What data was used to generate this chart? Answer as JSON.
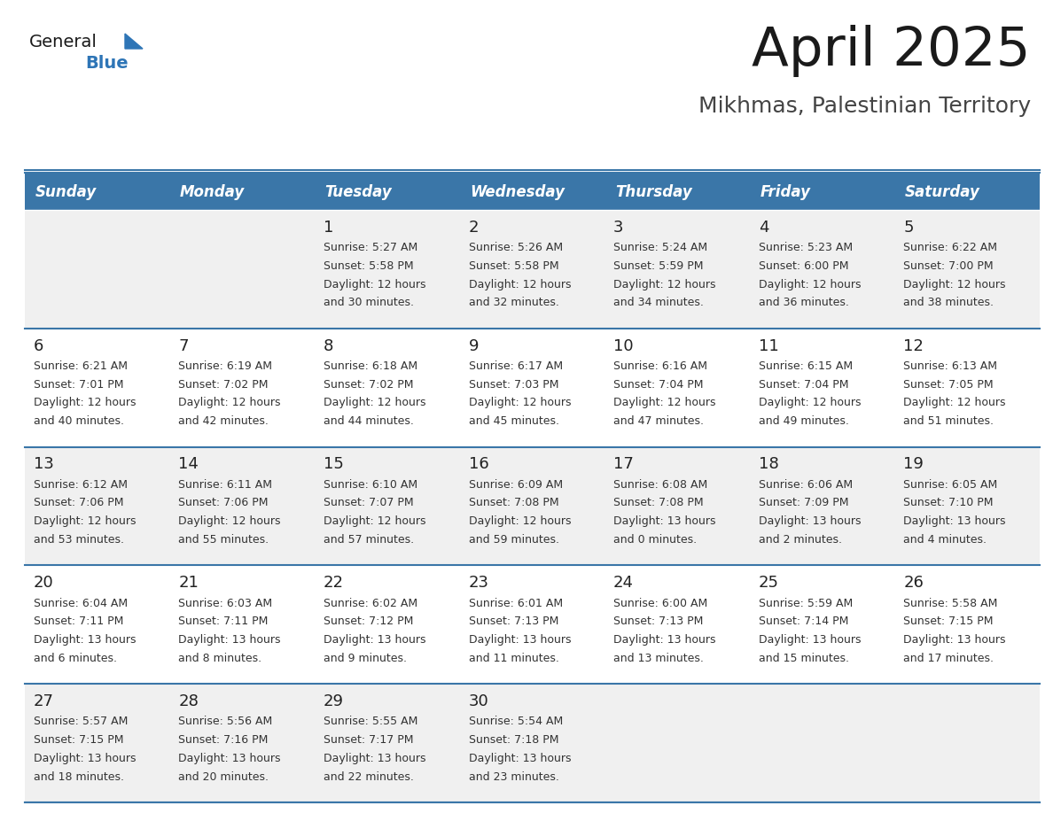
{
  "title": "April 2025",
  "subtitle": "Mikhmas, Palestinian Territory",
  "days_of_week": [
    "Sunday",
    "Monday",
    "Tuesday",
    "Wednesday",
    "Thursday",
    "Friday",
    "Saturday"
  ],
  "header_bg": "#3a76a8",
  "header_text": "#ffffff",
  "cell_bg_odd": "#f0f0f0",
  "cell_bg_even": "#ffffff",
  "day_num_color": "#222222",
  "text_color": "#333333",
  "border_color": "#3a76a8",
  "title_color": "#1a1a1a",
  "subtitle_color": "#444444",
  "logo_general_color": "#1a1a1a",
  "logo_blue_color": "#2e75b6",
  "weeks": [
    [
      {
        "day": null,
        "info": null
      },
      {
        "day": null,
        "info": null
      },
      {
        "day": 1,
        "info": "Sunrise: 5:27 AM\nSunset: 5:58 PM\nDaylight: 12 hours\nand 30 minutes."
      },
      {
        "day": 2,
        "info": "Sunrise: 5:26 AM\nSunset: 5:58 PM\nDaylight: 12 hours\nand 32 minutes."
      },
      {
        "day": 3,
        "info": "Sunrise: 5:24 AM\nSunset: 5:59 PM\nDaylight: 12 hours\nand 34 minutes."
      },
      {
        "day": 4,
        "info": "Sunrise: 5:23 AM\nSunset: 6:00 PM\nDaylight: 12 hours\nand 36 minutes."
      },
      {
        "day": 5,
        "info": "Sunrise: 6:22 AM\nSunset: 7:00 PM\nDaylight: 12 hours\nand 38 minutes."
      }
    ],
    [
      {
        "day": 6,
        "info": "Sunrise: 6:21 AM\nSunset: 7:01 PM\nDaylight: 12 hours\nand 40 minutes."
      },
      {
        "day": 7,
        "info": "Sunrise: 6:19 AM\nSunset: 7:02 PM\nDaylight: 12 hours\nand 42 minutes."
      },
      {
        "day": 8,
        "info": "Sunrise: 6:18 AM\nSunset: 7:02 PM\nDaylight: 12 hours\nand 44 minutes."
      },
      {
        "day": 9,
        "info": "Sunrise: 6:17 AM\nSunset: 7:03 PM\nDaylight: 12 hours\nand 45 minutes."
      },
      {
        "day": 10,
        "info": "Sunrise: 6:16 AM\nSunset: 7:04 PM\nDaylight: 12 hours\nand 47 minutes."
      },
      {
        "day": 11,
        "info": "Sunrise: 6:15 AM\nSunset: 7:04 PM\nDaylight: 12 hours\nand 49 minutes."
      },
      {
        "day": 12,
        "info": "Sunrise: 6:13 AM\nSunset: 7:05 PM\nDaylight: 12 hours\nand 51 minutes."
      }
    ],
    [
      {
        "day": 13,
        "info": "Sunrise: 6:12 AM\nSunset: 7:06 PM\nDaylight: 12 hours\nand 53 minutes."
      },
      {
        "day": 14,
        "info": "Sunrise: 6:11 AM\nSunset: 7:06 PM\nDaylight: 12 hours\nand 55 minutes."
      },
      {
        "day": 15,
        "info": "Sunrise: 6:10 AM\nSunset: 7:07 PM\nDaylight: 12 hours\nand 57 minutes."
      },
      {
        "day": 16,
        "info": "Sunrise: 6:09 AM\nSunset: 7:08 PM\nDaylight: 12 hours\nand 59 minutes."
      },
      {
        "day": 17,
        "info": "Sunrise: 6:08 AM\nSunset: 7:08 PM\nDaylight: 13 hours\nand 0 minutes."
      },
      {
        "day": 18,
        "info": "Sunrise: 6:06 AM\nSunset: 7:09 PM\nDaylight: 13 hours\nand 2 minutes."
      },
      {
        "day": 19,
        "info": "Sunrise: 6:05 AM\nSunset: 7:10 PM\nDaylight: 13 hours\nand 4 minutes."
      }
    ],
    [
      {
        "day": 20,
        "info": "Sunrise: 6:04 AM\nSunset: 7:11 PM\nDaylight: 13 hours\nand 6 minutes."
      },
      {
        "day": 21,
        "info": "Sunrise: 6:03 AM\nSunset: 7:11 PM\nDaylight: 13 hours\nand 8 minutes."
      },
      {
        "day": 22,
        "info": "Sunrise: 6:02 AM\nSunset: 7:12 PM\nDaylight: 13 hours\nand 9 minutes."
      },
      {
        "day": 23,
        "info": "Sunrise: 6:01 AM\nSunset: 7:13 PM\nDaylight: 13 hours\nand 11 minutes."
      },
      {
        "day": 24,
        "info": "Sunrise: 6:00 AM\nSunset: 7:13 PM\nDaylight: 13 hours\nand 13 minutes."
      },
      {
        "day": 25,
        "info": "Sunrise: 5:59 AM\nSunset: 7:14 PM\nDaylight: 13 hours\nand 15 minutes."
      },
      {
        "day": 26,
        "info": "Sunrise: 5:58 AM\nSunset: 7:15 PM\nDaylight: 13 hours\nand 17 minutes."
      }
    ],
    [
      {
        "day": 27,
        "info": "Sunrise: 5:57 AM\nSunset: 7:15 PM\nDaylight: 13 hours\nand 18 minutes."
      },
      {
        "day": 28,
        "info": "Sunrise: 5:56 AM\nSunset: 7:16 PM\nDaylight: 13 hours\nand 20 minutes."
      },
      {
        "day": 29,
        "info": "Sunrise: 5:55 AM\nSunset: 7:17 PM\nDaylight: 13 hours\nand 22 minutes."
      },
      {
        "day": 30,
        "info": "Sunrise: 5:54 AM\nSunset: 7:18 PM\nDaylight: 13 hours\nand 23 minutes."
      },
      {
        "day": null,
        "info": null
      },
      {
        "day": null,
        "info": null
      },
      {
        "day": null,
        "info": null
      }
    ]
  ]
}
